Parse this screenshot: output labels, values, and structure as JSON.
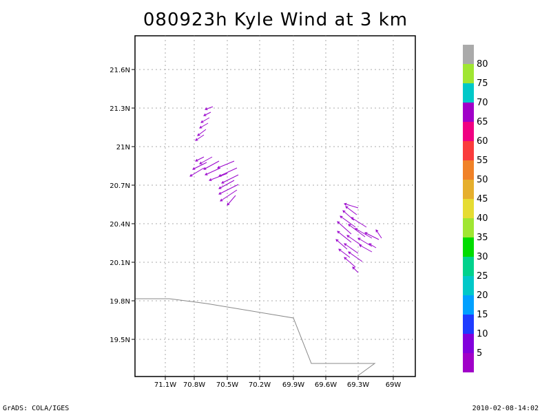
{
  "title": "080923h Kyle Wind at 3 km",
  "footer": {
    "left": "GrADS: COLA/IGES",
    "right": "2010-02-08-14:02"
  },
  "axes": {
    "lon_ticks": [
      "71.1W",
      "70.8W",
      "70.5W",
      "70.2W",
      "69.9W",
      "69.6W",
      "69.3W",
      "69W"
    ],
    "lat_ticks": [
      "21.6N",
      "21.3N",
      "21N",
      "20.7N",
      "20.4N",
      "20.1N",
      "19.8N",
      "19.5N"
    ],
    "grid": true
  },
  "colorbar": {
    "labels": [
      "5",
      "10",
      "15",
      "20",
      "25",
      "30",
      "35",
      "40",
      "45",
      "50",
      "55",
      "60",
      "65",
      "70",
      "75",
      "80"
    ],
    "colors": [
      "#a000c8",
      "#8200dc",
      "#1e3cff",
      "#00a0ff",
      "#00c8c8",
      "#00d28c",
      "#00dc00",
      "#a0e632",
      "#e6dc32",
      "#e6af2d",
      "#f08228",
      "#fa3c3c",
      "#f00082",
      "#a000c8",
      "#00c8c8",
      "#a0e632",
      "#aaaaaa"
    ]
  },
  "map": {
    "wind_vector_color": "#9900cc",
    "coastline_color": "#888888"
  }
}
